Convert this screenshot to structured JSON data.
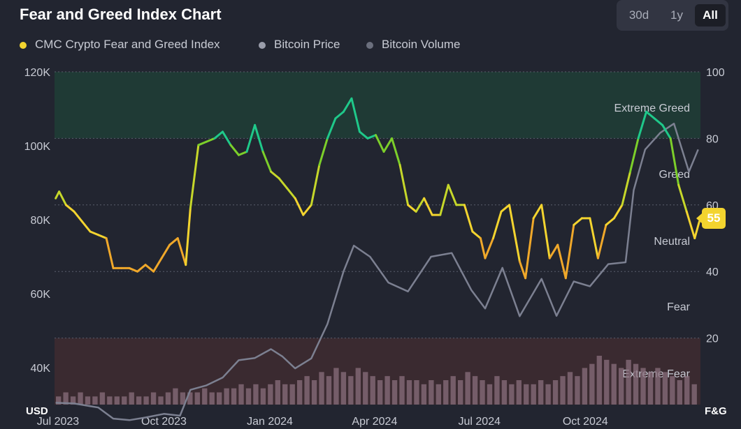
{
  "title": "Fear and Greed Index Chart",
  "ranges": [
    {
      "label": "30d",
      "active": false
    },
    {
      "label": "1y",
      "active": false
    },
    {
      "label": "All",
      "active": true
    }
  ],
  "legend": [
    {
      "label": "CMC Crypto Fear and Greed Index",
      "color": "#f3d42f"
    },
    {
      "label": "Bitcoin Price",
      "color": "#9a9daa"
    },
    {
      "label": "Bitcoin Volume",
      "color": "#6b6f7d"
    }
  ],
  "current_value": "55",
  "chart_data": {
    "type": "line",
    "x_ticks": [
      "Jul 2023",
      "Oct 2023",
      "Jan 2024",
      "Apr 2024",
      "Jul 2024",
      "Oct 2024"
    ],
    "left_axis": {
      "label": "USD",
      "ticks": [
        "40K",
        "60K",
        "80K",
        "100K",
        "120K"
      ],
      "ylim": [
        30000,
        120000
      ]
    },
    "right_axis": {
      "label": "F&G",
      "ticks": [
        "20",
        "40",
        "60",
        "80",
        "100"
      ],
      "ylim": [
        0,
        100
      ]
    },
    "zones": [
      {
        "label": "Extreme Greed",
        "range": [
          80,
          100
        ],
        "color": "#1f3a35"
      },
      {
        "label": "Greed",
        "range": [
          60,
          80
        ],
        "color": ""
      },
      {
        "label": "Neutral",
        "range": [
          40,
          60
        ],
        "color": ""
      },
      {
        "label": "Fear",
        "range": [
          20,
          40
        ],
        "color": ""
      },
      {
        "label": "Extreme Fear",
        "range": [
          0,
          20
        ],
        "color": "#3a2a30"
      }
    ],
    "series": [
      {
        "name": "CMC Crypto Fear and Greed Index",
        "x": [
          "2023-06-29",
          "2023-07-02",
          "2023-07-08",
          "2023-07-15",
          "2023-07-22",
          "2023-07-29",
          "2023-08-05",
          "2023-08-12",
          "2023-08-18",
          "2023-08-25",
          "2023-09-01",
          "2023-09-08",
          "2023-09-15",
          "2023-09-22",
          "2023-09-29",
          "2023-10-06",
          "2023-10-13",
          "2023-10-20",
          "2023-10-24",
          "2023-10-31",
          "2023-11-07",
          "2023-11-14",
          "2023-11-21",
          "2023-11-28",
          "2023-12-05",
          "2023-12-12",
          "2023-12-19",
          "2023-12-26",
          "2024-01-02",
          "2024-01-09",
          "2024-01-16",
          "2024-01-23",
          "2024-01-30",
          "2024-02-06",
          "2024-02-13",
          "2024-02-20",
          "2024-02-27",
          "2024-03-05",
          "2024-03-12",
          "2024-03-19",
          "2024-03-26",
          "2024-04-02",
          "2024-04-09",
          "2024-04-16",
          "2024-04-23",
          "2024-04-30",
          "2024-05-07",
          "2024-05-14",
          "2024-05-21",
          "2024-05-28",
          "2024-06-04",
          "2024-06-11",
          "2024-06-18",
          "2024-06-25",
          "2024-07-02",
          "2024-07-06",
          "2024-07-13",
          "2024-07-20",
          "2024-07-27",
          "2024-08-05",
          "2024-08-10",
          "2024-08-17",
          "2024-08-24",
          "2024-08-31",
          "2024-09-07",
          "2024-09-14",
          "2024-09-21",
          "2024-09-28",
          "2024-10-05",
          "2024-10-12",
          "2024-10-19",
          "2024-10-26",
          "2024-11-02",
          "2024-11-09",
          "2024-11-16",
          "2024-11-23",
          "2024-11-30",
          "2024-12-07",
          "2024-12-14",
          "2024-12-21",
          "2024-12-28",
          "2025-01-04",
          "2025-01-08"
        ],
        "values": [
          62,
          64,
          60,
          58,
          55,
          52,
          51,
          50,
          41,
          41,
          41,
          40,
          42,
          40,
          44,
          48,
          50,
          42,
          59,
          78,
          79,
          80,
          82,
          78,
          75,
          76,
          84,
          76,
          70,
          68,
          65,
          62,
          57,
          60,
          72,
          80,
          86,
          88,
          92,
          82,
          80,
          81,
          76,
          80,
          72,
          60,
          58,
          62,
          57,
          57,
          66,
          60,
          60,
          52,
          50,
          44,
          50,
          58,
          60,
          43,
          38,
          56,
          60,
          44,
          48,
          38,
          54,
          56,
          56,
          44,
          54,
          56,
          60,
          70,
          80,
          88,
          86,
          84,
          80,
          66,
          58,
          50,
          55
        ]
      },
      {
        "name": "Bitcoin Price",
        "x": [
          "2023-06-29",
          "2023-07-15",
          "2023-08-05",
          "2023-08-18",
          "2023-09-01",
          "2023-09-15",
          "2023-10-01",
          "2023-10-15",
          "2023-10-24",
          "2023-11-07",
          "2023-11-21",
          "2023-12-05",
          "2023-12-19",
          "2024-01-02",
          "2024-01-12",
          "2024-01-23",
          "2024-02-06",
          "2024-02-20",
          "2024-03-05",
          "2024-03-14",
          "2024-03-28",
          "2024-04-13",
          "2024-04-30",
          "2024-05-20",
          "2024-06-07",
          "2024-06-24",
          "2024-07-06",
          "2024-07-21",
          "2024-08-05",
          "2024-08-24",
          "2024-09-06",
          "2024-09-21",
          "2024-10-05",
          "2024-10-21",
          "2024-11-05",
          "2024-11-12",
          "2024-11-22",
          "2024-12-05",
          "2024-12-17",
          "2024-12-30",
          "2025-01-07"
        ],
        "values": [
          30500,
          30300,
          29200,
          26200,
          25800,
          26500,
          27500,
          27000,
          34000,
          35200,
          37300,
          42000,
          42600,
          45000,
          43000,
          39800,
          42500,
          51800,
          66000,
          73000,
          70000,
          63000,
          60600,
          70000,
          71000,
          61000,
          56000,
          67000,
          53900,
          64000,
          54000,
          63300,
          62000,
          68000,
          68500,
          88000,
          99000,
          103500,
          106000,
          93000,
          99000
        ]
      },
      {
        "name": "Bitcoin Volume",
        "values": [
          2,
          3,
          2,
          3,
          2,
          2,
          3,
          2,
          2,
          2,
          3,
          2,
          2,
          3,
          2,
          3,
          4,
          3,
          3,
          3,
          4,
          3,
          3,
          4,
          4,
          5,
          4,
          5,
          4,
          5,
          6,
          5,
          5,
          6,
          7,
          6,
          8,
          7,
          9,
          8,
          7,
          9,
          8,
          7,
          6,
          7,
          6,
          7,
          6,
          6,
          5,
          6,
          5,
          6,
          7,
          6,
          8,
          7,
          6,
          5,
          7,
          6,
          5,
          6,
          5,
          5,
          6,
          5,
          6,
          7,
          8,
          7,
          9,
          10,
          12,
          11,
          10,
          9,
          11,
          10,
          9,
          8,
          9,
          8,
          7,
          6,
          7,
          5
        ]
      }
    ]
  }
}
